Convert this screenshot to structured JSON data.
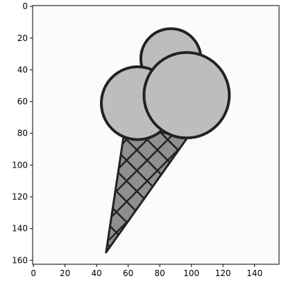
{
  "chart_data": {
    "type": "image",
    "title": "",
    "xlabel": "",
    "ylabel": "",
    "xlim": [
      -0.5,
      155.5
    ],
    "ylim": [
      162.5,
      -0.5
    ],
    "x_ticks": [
      0,
      20,
      40,
      60,
      80,
      100,
      120,
      140
    ],
    "y_ticks": [
      0,
      20,
      40,
      60,
      80,
      100,
      120,
      140,
      160
    ],
    "x_tick_labels": [
      "0",
      "20",
      "40",
      "60",
      "80",
      "100",
      "120",
      "140"
    ],
    "y_tick_labels": [
      "0",
      "20",
      "40",
      "60",
      "80",
      "100",
      "120",
      "140",
      "160"
    ],
    "grid": false,
    "image_content": {
      "subject": "ice-cream-cone",
      "colors": {
        "cone": "#8f8f8f",
        "scoops": "#bdbdbd",
        "outline": "#222222",
        "background": "#fbfbfb"
      },
      "cone": {
        "points": [
          [
            46,
            155
          ],
          [
            58,
            76
          ],
          [
            98,
            82
          ]
        ]
      },
      "scoops": [
        {
          "cx": 87,
          "cy": 33,
          "r": 19
        },
        {
          "cx": 66,
          "cy": 61,
          "r": 23
        },
        {
          "cx": 97,
          "cy": 56,
          "r": 27
        }
      ]
    }
  }
}
